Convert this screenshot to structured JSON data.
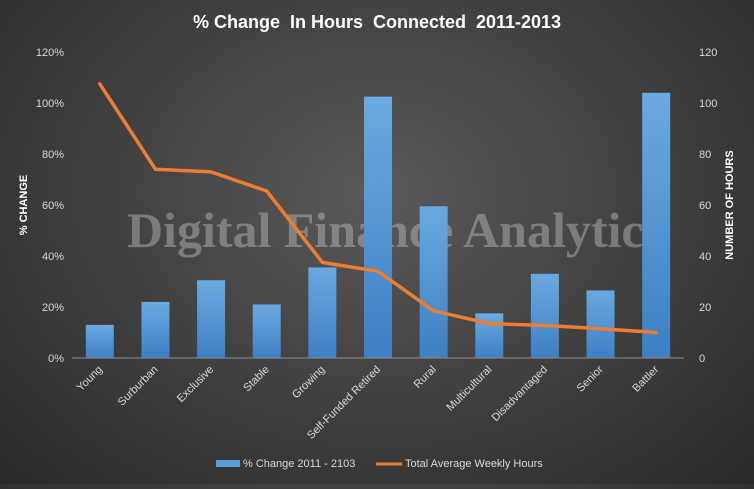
{
  "chart_data": {
    "type": "bar",
    "title": "% Change  In Hours  Connected  2011-2013",
    "watermark": "Digital Finance Analytics",
    "categories": [
      "Young",
      "Surburban",
      "Exclusive",
      "Stable",
      "Growing",
      "Self-Funded Retired",
      "Rural",
      "Multicultural",
      "Disadvantaged",
      "Senior",
      "Battler"
    ],
    "series": [
      {
        "name": "% Change 2011 - 2103",
        "type": "bar",
        "axis": "left",
        "color": "#5b9bd5",
        "values": [
          0.13,
          0.22,
          0.305,
          0.21,
          0.355,
          1.025,
          0.595,
          0.175,
          0.33,
          0.265,
          1.04
        ]
      },
      {
        "name": "Total Average Weekly Hours",
        "type": "line",
        "axis": "right",
        "color": "#ed7d31",
        "values": [
          107.5,
          74,
          73,
          65.5,
          37.5,
          34,
          18.5,
          13.5,
          12.8,
          11.5,
          10
        ]
      }
    ],
    "y_left": {
      "label": "% CHANGE",
      "min": 0,
      "max": 1.2,
      "ticks": [
        "0%",
        "20%",
        "40%",
        "60%",
        "80%",
        "100%",
        "120%"
      ]
    },
    "y_right": {
      "label": "NUMBER OF HOURS",
      "min": 0,
      "max": 120,
      "ticks": [
        "0",
        "20",
        "40",
        "60",
        "80",
        "100",
        "120"
      ]
    },
    "grid": false,
    "legend_position": "bottom"
  }
}
